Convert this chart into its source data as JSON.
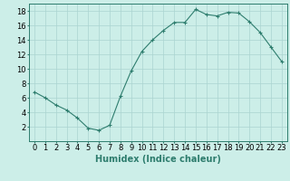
{
  "x": [
    0,
    1,
    2,
    3,
    4,
    5,
    6,
    7,
    8,
    9,
    10,
    11,
    12,
    13,
    14,
    15,
    16,
    17,
    18,
    19,
    20,
    21,
    22,
    23
  ],
  "y": [
    6.8,
    6.0,
    5.0,
    4.3,
    3.2,
    1.8,
    1.5,
    2.2,
    6.2,
    9.7,
    12.4,
    14.0,
    15.3,
    16.4,
    16.4,
    18.2,
    17.5,
    17.3,
    17.8,
    17.7,
    16.5,
    15.0,
    13.0,
    11.0
  ],
  "line_color": "#2e7d6e",
  "marker": "+",
  "marker_size": 3,
  "bg_color": "#cceee8",
  "grid_color": "#aad4d0",
  "xlabel": "Humidex (Indice chaleur)",
  "xlim": [
    -0.5,
    23.5
  ],
  "ylim": [
    0,
    19
  ],
  "yticks": [
    2,
    4,
    6,
    8,
    10,
    12,
    14,
    16,
    18
  ],
  "xticks": [
    0,
    1,
    2,
    3,
    4,
    5,
    6,
    7,
    8,
    9,
    10,
    11,
    12,
    13,
    14,
    15,
    16,
    17,
    18,
    19,
    20,
    21,
    22,
    23
  ],
  "xlabel_fontsize": 7,
  "tick_fontsize": 6
}
